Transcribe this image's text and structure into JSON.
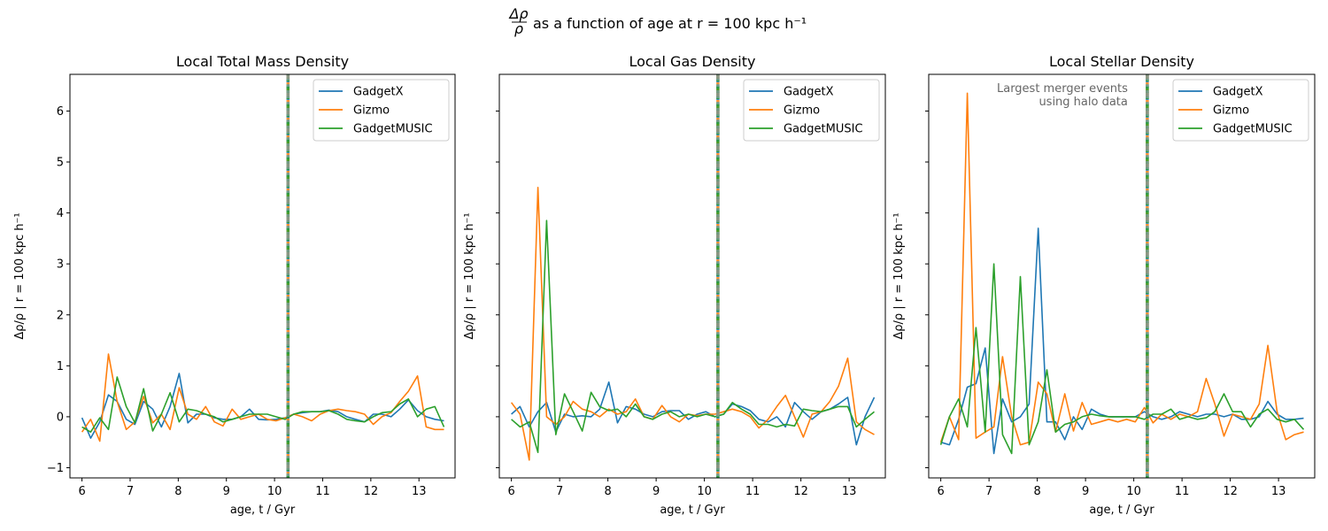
{
  "figure": {
    "suptitle_prefix": "Δρ/ρ",
    "suptitle_suffix": "as a function of age at r = 100 kpc h⁻¹"
  },
  "colors": {
    "GadgetX": "#1f77b4",
    "Gizmo": "#ff7f0e",
    "GadgetMUSIC": "#2ca02c",
    "merger_line": "#7a9a94"
  },
  "chart_data": [
    {
      "type": "line",
      "title": "Local Total Mass Density",
      "xlabel": "age, t / Gyr",
      "ylabel": "Δρ/ρ | r = 100 kpc h⁻¹",
      "xlim": [
        5.75,
        13.75
      ],
      "ylim": [
        -1.2,
        6.72
      ],
      "xticks": [
        6,
        7,
        8,
        9,
        10,
        11,
        12,
        13
      ],
      "yticks": [
        -1,
        0,
        1,
        2,
        3,
        4,
        5,
        6
      ],
      "show_yticklabels": true,
      "grid": false,
      "legend": "upper right",
      "annotation": "",
      "vlines": [
        10.28
      ],
      "x": [
        6.0,
        6.18,
        6.37,
        6.55,
        6.73,
        6.92,
        7.1,
        7.28,
        7.47,
        7.65,
        7.83,
        8.02,
        8.2,
        8.38,
        8.57,
        8.75,
        8.93,
        9.12,
        9.3,
        9.48,
        9.67,
        9.85,
        10.03,
        10.22,
        10.4,
        10.58,
        10.77,
        10.95,
        11.13,
        11.32,
        11.5,
        11.68,
        11.87,
        12.05,
        12.23,
        12.42,
        12.6,
        12.78,
        12.97,
        13.15,
        13.33,
        13.52
      ],
      "series": [
        {
          "name": "GadgetX",
          "values": [
            -0.02,
            -0.42,
            -0.1,
            0.43,
            0.3,
            -0.05,
            -0.15,
            0.3,
            0.15,
            -0.2,
            0.2,
            0.85,
            -0.12,
            0.05,
            0.05,
            -0.02,
            -0.05,
            -0.05,
            0.0,
            0.15,
            -0.05,
            -0.06,
            -0.05,
            -0.02,
            0.05,
            0.08,
            0.1,
            0.1,
            0.13,
            0.1,
            0.0,
            -0.05,
            -0.1,
            0.05,
            0.05,
            0.0,
            0.15,
            0.33,
            0.12,
            0.0,
            -0.05,
            -0.08
          ]
        },
        {
          "name": "Gizmo",
          "values": [
            -0.3,
            -0.05,
            -0.48,
            1.23,
            0.3,
            -0.25,
            -0.1,
            0.4,
            -0.12,
            0.05,
            -0.25,
            0.57,
            0.05,
            -0.05,
            0.2,
            -0.1,
            -0.18,
            0.15,
            -0.05,
            0.0,
            0.05,
            -0.05,
            -0.08,
            -0.02,
            0.05,
            0.0,
            -0.08,
            0.05,
            0.12,
            0.15,
            0.12,
            0.1,
            0.05,
            -0.15,
            0.0,
            0.08,
            0.3,
            0.5,
            0.8,
            -0.2,
            -0.25,
            -0.25
          ]
        },
        {
          "name": "GadgetMUSIC",
          "values": [
            -0.2,
            -0.3,
            -0.02,
            -0.25,
            0.78,
            0.2,
            -0.12,
            0.55,
            -0.28,
            0.05,
            0.47,
            -0.1,
            0.15,
            0.12,
            0.05,
            0.0,
            -0.1,
            -0.05,
            0.0,
            0.05,
            0.05,
            0.05,
            0.0,
            -0.05,
            0.05,
            0.1,
            0.1,
            0.1,
            0.12,
            0.05,
            -0.05,
            -0.08,
            -0.1,
            0.0,
            0.08,
            0.1,
            0.25,
            0.35,
            0.0,
            0.15,
            0.2,
            -0.2
          ]
        }
      ]
    },
    {
      "type": "line",
      "title": "Local Gas Density",
      "xlabel": "age, t / Gyr",
      "ylabel": "Δρ/ρ | r = 100 kpc h⁻¹",
      "xlim": [
        5.75,
        13.75
      ],
      "ylim": [
        -1.2,
        6.72
      ],
      "xticks": [
        6,
        7,
        8,
        9,
        10,
        11,
        12,
        13
      ],
      "yticks": [
        -1,
        0,
        1,
        2,
        3,
        4,
        5,
        6
      ],
      "show_yticklabels": false,
      "grid": false,
      "legend": "upper right",
      "annotation": "",
      "vlines": [
        10.28
      ],
      "x": [
        6.0,
        6.18,
        6.37,
        6.55,
        6.73,
        6.92,
        7.1,
        7.28,
        7.47,
        7.65,
        7.83,
        8.02,
        8.2,
        8.38,
        8.57,
        8.75,
        8.93,
        9.12,
        9.3,
        9.48,
        9.67,
        9.85,
        10.03,
        10.22,
        10.4,
        10.58,
        10.77,
        10.95,
        11.13,
        11.32,
        11.5,
        11.68,
        11.87,
        12.05,
        12.23,
        12.42,
        12.6,
        12.78,
        12.97,
        13.15,
        13.33,
        13.52
      ],
      "series": [
        {
          "name": "GadgetX",
          "values": [
            0.05,
            0.2,
            -0.2,
            0.1,
            0.28,
            -0.3,
            0.05,
            0.0,
            0.02,
            0.0,
            0.15,
            0.68,
            -0.12,
            0.2,
            0.15,
            0.05,
            0.0,
            0.1,
            0.12,
            0.12,
            -0.05,
            0.05,
            0.1,
            0.0,
            0.05,
            0.25,
            0.2,
            0.12,
            -0.05,
            -0.1,
            0.0,
            -0.2,
            0.28,
            0.1,
            -0.05,
            0.1,
            0.15,
            0.25,
            0.38,
            -0.55,
            0.0,
            0.38
          ]
        },
        {
          "name": "Gizmo",
          "values": [
            0.28,
            0.05,
            -0.85,
            4.5,
            0.0,
            -0.15,
            0.0,
            0.3,
            0.15,
            0.1,
            0.0,
            0.15,
            0.05,
            0.1,
            0.35,
            0.0,
            -0.05,
            0.22,
            0.0,
            -0.1,
            0.05,
            0.02,
            0.05,
            0.05,
            0.1,
            0.15,
            0.1,
            0.0,
            -0.22,
            -0.05,
            0.2,
            0.42,
            0.0,
            -0.4,
            0.05,
            0.1,
            0.3,
            0.6,
            1.15,
            -0.1,
            -0.25,
            -0.35
          ]
        },
        {
          "name": "GadgetMUSIC",
          "values": [
            -0.05,
            -0.2,
            -0.1,
            -0.7,
            3.85,
            -0.35,
            0.45,
            0.1,
            -0.28,
            0.48,
            0.2,
            0.12,
            0.15,
            0.0,
            0.25,
            0.0,
            -0.05,
            0.05,
            0.1,
            0.0,
            0.05,
            0.0,
            0.05,
            0.0,
            0.05,
            0.28,
            0.15,
            0.05,
            -0.15,
            -0.15,
            -0.2,
            -0.15,
            -0.18,
            0.15,
            0.12,
            0.1,
            0.15,
            0.2,
            0.2,
            -0.2,
            -0.05,
            0.1
          ]
        }
      ]
    },
    {
      "type": "line",
      "title": "Local Stellar Density",
      "xlabel": "age, t / Gyr",
      "ylabel": "Δρ/ρ | r = 100 kpc h⁻¹",
      "xlim": [
        5.75,
        13.75
      ],
      "ylim": [
        -1.2,
        6.72
      ],
      "xticks": [
        6,
        7,
        8,
        9,
        10,
        11,
        12,
        13
      ],
      "yticks": [
        -1,
        0,
        1,
        2,
        3,
        4,
        5,
        6
      ],
      "show_yticklabels": false,
      "grid": false,
      "legend": "upper right",
      "annotation": "Largest merger events\nusing halo data",
      "vlines": [
        10.28
      ],
      "x": [
        6.0,
        6.18,
        6.37,
        6.55,
        6.73,
        6.92,
        7.1,
        7.28,
        7.47,
        7.65,
        7.83,
        8.02,
        8.2,
        8.38,
        8.57,
        8.75,
        8.93,
        9.12,
        9.3,
        9.48,
        9.67,
        9.85,
        10.03,
        10.22,
        10.4,
        10.58,
        10.77,
        10.95,
        11.13,
        11.32,
        11.5,
        11.68,
        11.87,
        12.05,
        12.23,
        12.42,
        12.6,
        12.78,
        12.97,
        13.15,
        13.33,
        13.52
      ],
      "series": [
        {
          "name": "GadgetX",
          "values": [
            -0.5,
            -0.55,
            -0.05,
            0.58,
            0.65,
            1.35,
            -0.72,
            0.35,
            -0.1,
            0.0,
            0.25,
            3.7,
            -0.1,
            -0.1,
            -0.45,
            0.0,
            -0.25,
            0.15,
            0.05,
            0.0,
            0.0,
            0.0,
            0.0,
            0.1,
            0.0,
            -0.05,
            0.0,
            0.1,
            0.05,
            0.0,
            0.05,
            0.05,
            0.0,
            0.05,
            -0.05,
            -0.05,
            0.0,
            0.3,
            0.05,
            -0.05,
            -0.05,
            -0.03
          ]
        },
        {
          "name": "Gizmo",
          "values": [
            -0.5,
            0.0,
            -0.45,
            6.35,
            -0.42,
            -0.3,
            -0.2,
            1.18,
            0.0,
            -0.55,
            -0.5,
            0.68,
            0.45,
            -0.3,
            0.45,
            -0.28,
            0.28,
            -0.15,
            -0.1,
            -0.05,
            -0.1,
            -0.05,
            -0.1,
            0.18,
            -0.12,
            0.05,
            -0.05,
            0.05,
            0.0,
            0.1,
            0.75,
            0.25,
            -0.38,
            0.05,
            0.0,
            -0.05,
            0.25,
            1.4,
            0.1,
            -0.45,
            -0.35,
            -0.3
          ]
        },
        {
          "name": "GadgetMUSIC",
          "values": [
            -0.55,
            0.0,
            0.35,
            -0.2,
            1.75,
            -0.3,
            3.0,
            -0.35,
            -0.72,
            2.75,
            -0.55,
            -0.1,
            0.92,
            -0.3,
            -0.15,
            -0.1,
            0.0,
            0.05,
            0.02,
            0.0,
            0.0,
            0.0,
            0.0,
            -0.05,
            0.05,
            0.05,
            0.15,
            -0.05,
            0.0,
            -0.05,
            -0.02,
            0.1,
            0.45,
            0.1,
            0.1,
            -0.2,
            0.05,
            0.15,
            -0.05,
            -0.1,
            -0.05,
            -0.25
          ]
        }
      ]
    }
  ]
}
